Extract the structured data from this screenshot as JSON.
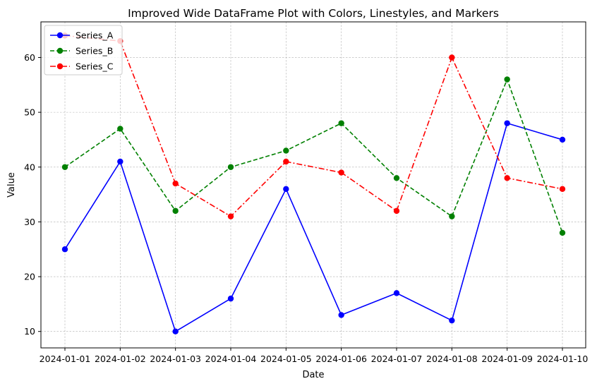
{
  "chart_data": {
    "type": "line",
    "title": "Improved Wide DataFrame Plot with Colors, Linestyles, and Markers",
    "xlabel": "Date",
    "ylabel": "Value",
    "categories": [
      "2024-01-01",
      "2024-01-02",
      "2024-01-03",
      "2024-01-04",
      "2024-01-05",
      "2024-01-06",
      "2024-01-07",
      "2024-01-08",
      "2024-01-09",
      "2024-01-10"
    ],
    "ylim": [
      7,
      66.5
    ],
    "yticks": [
      10,
      20,
      30,
      40,
      50,
      60
    ],
    "grid": true,
    "legend_position": "top-left",
    "series": [
      {
        "name": "Series_A",
        "color": "#0000ff",
        "linestyle": "solid",
        "marker": "circle",
        "values": [
          25,
          41,
          10,
          16,
          36,
          13,
          17,
          12,
          48,
          45
        ]
      },
      {
        "name": "Series_B",
        "color": "#008000",
        "linestyle": "dashed",
        "marker": "circle",
        "values": [
          40,
          47,
          32,
          40,
          43,
          48,
          38,
          31,
          56,
          28
        ]
      },
      {
        "name": "Series_C",
        "color": "#ff0000",
        "linestyle": "dashdot",
        "marker": "circle",
        "values": [
          64,
          63,
          37,
          31,
          41,
          39,
          32,
          60,
          38,
          36
        ]
      }
    ]
  }
}
